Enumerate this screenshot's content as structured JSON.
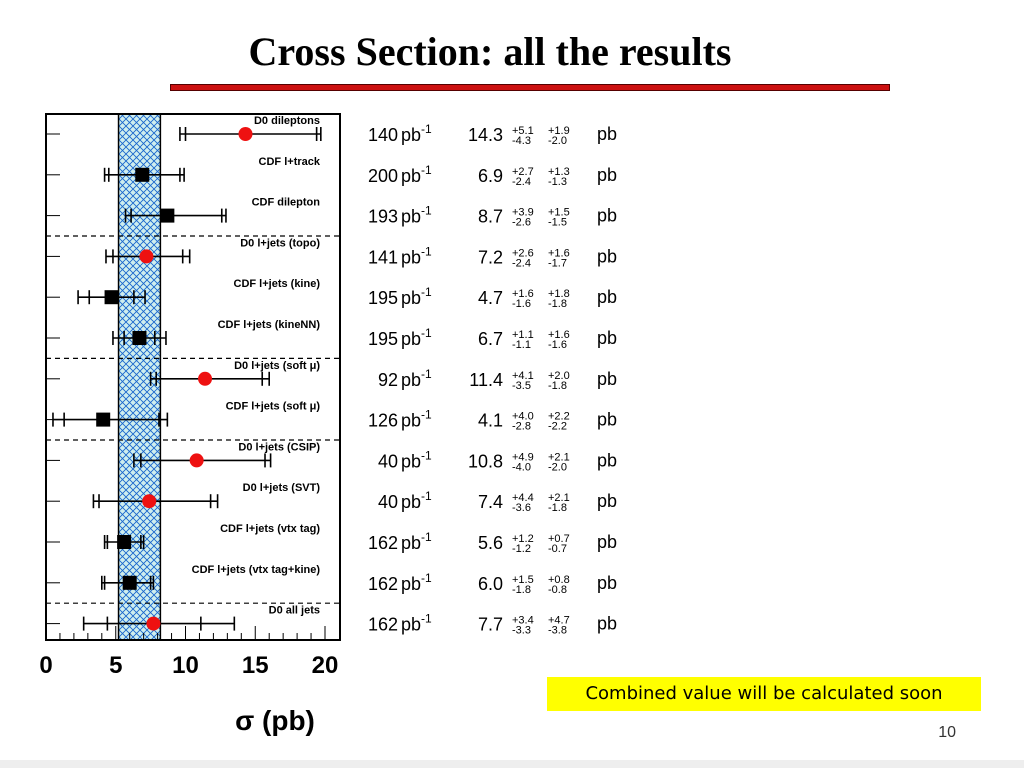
{
  "slide": {
    "title": "Cross Section: all the results",
    "note": "Combined value will be calculated soon",
    "page_number": "10"
  },
  "colors": {
    "title_underline": "#cc1111",
    "d0_marker": "#ee1111",
    "cdf_marker": "#000000",
    "band_hatch": "#1a66cc",
    "band_fill": "#cfeeee",
    "note_background": "#ffff00"
  },
  "chart_data": {
    "type": "scatter",
    "xlabel": "σ (pb)",
    "xlim": [
      0,
      20
    ],
    "x_ticks": [
      "0",
      "5",
      "10",
      "15",
      "20"
    ],
    "combined_band": [
      5.2,
      8.2
    ],
    "marker_legend": {
      "D0": "red circle",
      "CDF": "black square"
    },
    "columns": [
      "luminosity",
      "sigma",
      "stat_up",
      "stat_down",
      "syst_up",
      "syst_down",
      "unit"
    ],
    "measurements": [
      {
        "label": "D0 dileptons",
        "experiment": "D0",
        "lumi": "140",
        "sigma": "14.3",
        "stat_up": "+5.1",
        "stat_down": "-4.3",
        "syst_up": "+1.9",
        "syst_down": "-2.0",
        "unit": "pb",
        "value": 14.3,
        "stat_err": [
          4.3,
          5.1
        ],
        "tot_err": [
          4.7,
          5.4
        ],
        "group_end": false
      },
      {
        "label": "CDF l+track",
        "experiment": "CDF",
        "lumi": "200",
        "sigma": "6.9",
        "stat_up": "+2.7",
        "stat_down": "-2.4",
        "syst_up": "+1.3",
        "syst_down": "-1.3",
        "unit": "pb",
        "value": 6.9,
        "stat_err": [
          2.4,
          2.7
        ],
        "tot_err": [
          2.7,
          3.0
        ],
        "group_end": false
      },
      {
        "label": "CDF dilepton",
        "experiment": "CDF",
        "lumi": "193",
        "sigma": "8.7",
        "stat_up": "+3.9",
        "stat_down": "-2.6",
        "syst_up": "+1.5",
        "syst_down": "-1.5",
        "unit": "pb",
        "value": 8.7,
        "stat_err": [
          2.6,
          3.9
        ],
        "tot_err": [
          3.0,
          4.2
        ],
        "group_end": true
      },
      {
        "label": "D0 l+jets (topo)",
        "experiment": "D0",
        "lumi": "141",
        "sigma": "7.2",
        "stat_up": "+2.6",
        "stat_down": "-2.4",
        "syst_up": "+1.6",
        "syst_down": "-1.7",
        "unit": "pb",
        "value": 7.2,
        "stat_err": [
          2.4,
          2.6
        ],
        "tot_err": [
          2.9,
          3.1
        ],
        "group_end": false
      },
      {
        "label": "CDF l+jets (kine)",
        "experiment": "CDF",
        "lumi": "195",
        "sigma": "4.7",
        "stat_up": "+1.6",
        "stat_down": "-1.6",
        "syst_up": "+1.8",
        "syst_down": "-1.8",
        "unit": "pb",
        "value": 4.7,
        "stat_err": [
          1.6,
          1.6
        ],
        "tot_err": [
          2.4,
          2.4
        ],
        "group_end": false
      },
      {
        "label": "CDF l+jets (kineNN)",
        "experiment": "CDF",
        "lumi": "195",
        "sigma": "6.7",
        "stat_up": "+1.1",
        "stat_down": "-1.1",
        "syst_up": "+1.6",
        "syst_down": "-1.6",
        "unit": "pb",
        "value": 6.7,
        "stat_err": [
          1.1,
          1.1
        ],
        "tot_err": [
          1.9,
          1.9
        ],
        "group_end": true
      },
      {
        "label": "D0 l+jets (soft μ)",
        "experiment": "D0",
        "lumi": "92",
        "sigma": "11.4",
        "stat_up": "+4.1",
        "stat_down": "-3.5",
        "syst_up": "+2.0",
        "syst_down": "-1.8",
        "unit": "pb",
        "value": 11.4,
        "stat_err": [
          3.5,
          4.1
        ],
        "tot_err": [
          3.9,
          4.6
        ],
        "group_end": false
      },
      {
        "label": "CDF l+jets (soft μ)",
        "experiment": "CDF",
        "lumi": "126",
        "sigma": "4.1",
        "stat_up": "+4.0",
        "stat_down": "-2.8",
        "syst_up": "+2.2",
        "syst_down": "-2.2",
        "unit": "pb",
        "value": 4.1,
        "stat_err": [
          2.8,
          4.0
        ],
        "tot_err": [
          3.6,
          4.6
        ],
        "group_end": true
      },
      {
        "label": "D0 l+jets (CSIP)",
        "experiment": "D0",
        "lumi": "40",
        "sigma": "10.8",
        "stat_up": "+4.9",
        "stat_down": "-4.0",
        "syst_up": "+2.1",
        "syst_down": "-2.0",
        "unit": "pb",
        "value": 10.8,
        "stat_err": [
          4.0,
          4.9
        ],
        "tot_err": [
          4.5,
          5.3
        ],
        "group_end": false
      },
      {
        "label": "D0 l+jets (SVT)",
        "experiment": "D0",
        "lumi": "40",
        "sigma": "7.4",
        "stat_up": "+4.4",
        "stat_down": "-3.6",
        "syst_up": "+2.1",
        "syst_down": "-1.8",
        "unit": "pb",
        "value": 7.4,
        "stat_err": [
          3.6,
          4.4
        ],
        "tot_err": [
          4.0,
          4.9
        ],
        "group_end": false
      },
      {
        "label": "CDF l+jets (vtx tag)",
        "experiment": "CDF",
        "lumi": "162",
        "sigma": "5.6",
        "stat_up": "+1.2",
        "stat_down": "-1.2",
        "syst_up": "+0.7",
        "syst_down": "-0.7",
        "unit": "pb",
        "value": 5.6,
        "stat_err": [
          1.2,
          1.2
        ],
        "tot_err": [
          1.4,
          1.4
        ],
        "group_end": false
      },
      {
        "label": "CDF l+jets (vtx tag+kine)",
        "experiment": "CDF",
        "lumi": "162",
        "sigma": "6.0",
        "stat_up": "+1.5",
        "stat_down": "-1.8",
        "syst_up": "+0.8",
        "syst_down": "-0.8",
        "unit": "pb",
        "value": 6.0,
        "stat_err": [
          1.8,
          1.5
        ],
        "tot_err": [
          2.0,
          1.7
        ],
        "group_end": true
      },
      {
        "label": "D0 all jets",
        "experiment": "D0",
        "lumi": "162",
        "sigma": "7.7",
        "stat_up": "+3.4",
        "stat_down": "-3.3",
        "syst_up": "+4.7",
        "syst_down": "-3.8",
        "unit": "pb",
        "value": 7.7,
        "stat_err": [
          3.3,
          3.4
        ],
        "tot_err": [
          5.0,
          5.8
        ],
        "group_end": false
      }
    ]
  }
}
